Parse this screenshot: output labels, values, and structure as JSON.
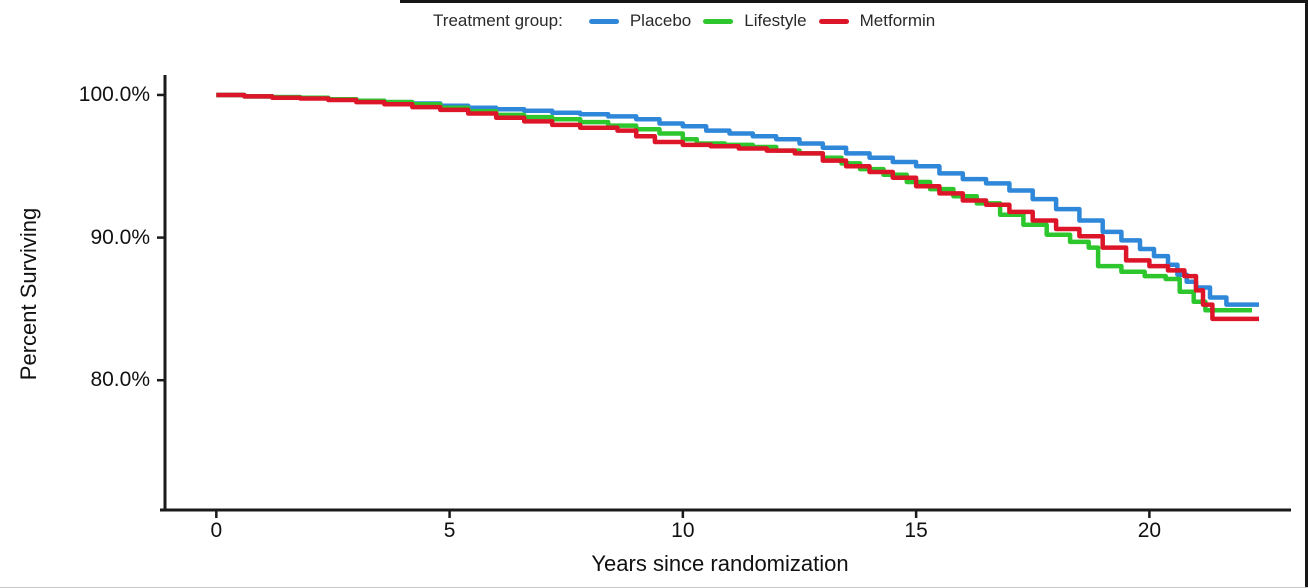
{
  "chart_data": {
    "type": "line",
    "subtype": "kaplan-meier-step",
    "title": "",
    "legend_title": "Treatment group:",
    "legend_position": "top-center",
    "grid": false,
    "xlabel": "Years since randomization",
    "ylabel": "Percent Surviving",
    "xlim": [
      -1.1,
      23.4
    ],
    "ylim": [
      70.9,
      101.4
    ],
    "x_ticks": [
      {
        "value": 0,
        "label": "0"
      },
      {
        "value": 5,
        "label": "5"
      },
      {
        "value": 10,
        "label": "10"
      },
      {
        "value": 15,
        "label": "15"
      },
      {
        "value": 20,
        "label": "20"
      }
    ],
    "y_ticks": [
      {
        "value": 100,
        "label": "100.0%"
      },
      {
        "value": 90,
        "label": "90.0%"
      },
      {
        "value": 80,
        "label": "80.0%"
      }
    ],
    "axis_color": "#1a1a1a",
    "series": [
      {
        "name": "Placebo",
        "color": "#2f87d9",
        "points": [
          [
            0,
            100
          ],
          [
            0.6,
            99.9
          ],
          [
            1.2,
            99.85
          ],
          [
            1.8,
            99.8
          ],
          [
            2.4,
            99.7
          ],
          [
            3,
            99.6
          ],
          [
            3.6,
            99.5
          ],
          [
            4.2,
            99.4
          ],
          [
            4.8,
            99.25
          ],
          [
            5.4,
            99.1
          ],
          [
            6,
            99.0
          ],
          [
            6.6,
            98.9
          ],
          [
            7.2,
            98.75
          ],
          [
            7.8,
            98.65
          ],
          [
            8.4,
            98.5
          ],
          [
            9,
            98.3
          ],
          [
            9.5,
            98.0
          ],
          [
            10,
            97.8
          ],
          [
            10.5,
            97.5
          ],
          [
            11,
            97.3
          ],
          [
            11.5,
            97.1
          ],
          [
            12,
            96.9
          ],
          [
            12.5,
            96.6
          ],
          [
            13,
            96.3
          ],
          [
            13.5,
            95.9
          ],
          [
            14,
            95.6
          ],
          [
            14.5,
            95.3
          ],
          [
            15,
            95.0
          ],
          [
            15.5,
            94.5
          ],
          [
            16,
            94.1
          ],
          [
            16.5,
            93.8
          ],
          [
            17,
            93.3
          ],
          [
            17.5,
            92.7
          ],
          [
            18,
            92.0
          ],
          [
            18.5,
            91.2
          ],
          [
            19,
            90.4
          ],
          [
            19.4,
            89.8
          ],
          [
            19.8,
            89.2
          ],
          [
            20.1,
            88.7
          ],
          [
            20.4,
            88.1
          ],
          [
            20.6,
            87.4
          ],
          [
            20.8,
            86.9
          ],
          [
            21.0,
            86.5
          ],
          [
            21.3,
            85.8
          ],
          [
            21.65,
            85.3
          ],
          [
            22.35,
            85.3
          ]
        ]
      },
      {
        "name": "Lifestyle",
        "color": "#2dc62d",
        "points": [
          [
            0,
            100
          ],
          [
            0.6,
            99.9
          ],
          [
            1.2,
            99.85
          ],
          [
            1.8,
            99.8
          ],
          [
            2.4,
            99.7
          ],
          [
            3,
            99.6
          ],
          [
            3.6,
            99.5
          ],
          [
            4.2,
            99.35
          ],
          [
            4.8,
            99.1
          ],
          [
            5.4,
            98.85
          ],
          [
            6,
            98.6
          ],
          [
            6.6,
            98.45
          ],
          [
            7.2,
            98.3
          ],
          [
            7.8,
            98.1
          ],
          [
            8.4,
            97.85
          ],
          [
            9,
            97.6
          ],
          [
            9.5,
            97.3
          ],
          [
            10,
            96.9
          ],
          [
            10.3,
            96.6
          ],
          [
            10.9,
            96.5
          ],
          [
            11.5,
            96.35
          ],
          [
            12,
            96.1
          ],
          [
            12.5,
            95.9
          ],
          [
            13,
            95.6
          ],
          [
            13.4,
            95.2
          ],
          [
            13.8,
            94.8
          ],
          [
            14.3,
            94.4
          ],
          [
            14.8,
            93.9
          ],
          [
            15.3,
            93.4
          ],
          [
            15.8,
            92.9
          ],
          [
            16.3,
            92.4
          ],
          [
            16.8,
            91.6
          ],
          [
            17.3,
            90.9
          ],
          [
            17.8,
            90.2
          ],
          [
            18.3,
            89.7
          ],
          [
            18.7,
            89.3
          ],
          [
            18.9,
            88.0
          ],
          [
            19.4,
            87.6
          ],
          [
            19.9,
            87.3
          ],
          [
            20.35,
            87.1
          ],
          [
            20.65,
            86.2
          ],
          [
            20.95,
            85.5
          ],
          [
            21.2,
            84.9
          ],
          [
            22.2,
            84.9
          ]
        ]
      },
      {
        "name": "Metformin",
        "color": "#dd1529",
        "points": [
          [
            0,
            100
          ],
          [
            0.6,
            99.9
          ],
          [
            1.2,
            99.8
          ],
          [
            1.8,
            99.75
          ],
          [
            2.4,
            99.65
          ],
          [
            3,
            99.5
          ],
          [
            3.6,
            99.35
          ],
          [
            4.2,
            99.15
          ],
          [
            4.8,
            98.95
          ],
          [
            5.4,
            98.7
          ],
          [
            6,
            98.4
          ],
          [
            6.6,
            98.15
          ],
          [
            7.2,
            97.9
          ],
          [
            7.8,
            97.7
          ],
          [
            8.6,
            97.5
          ],
          [
            9,
            97.1
          ],
          [
            9.4,
            96.7
          ],
          [
            10,
            96.5
          ],
          [
            10.6,
            96.4
          ],
          [
            11.2,
            96.25
          ],
          [
            11.8,
            96.1
          ],
          [
            12.4,
            95.9
          ],
          [
            13,
            95.4
          ],
          [
            13.5,
            95.0
          ],
          [
            14,
            94.6
          ],
          [
            14.5,
            94.2
          ],
          [
            15,
            93.6
          ],
          [
            15.5,
            93.1
          ],
          [
            16,
            92.6
          ],
          [
            16.5,
            92.3
          ],
          [
            17,
            91.8
          ],
          [
            17.5,
            91.2
          ],
          [
            18,
            90.6
          ],
          [
            18.5,
            90.1
          ],
          [
            19,
            89.3
          ],
          [
            19.5,
            88.4
          ],
          [
            20,
            88.0
          ],
          [
            20.4,
            87.7
          ],
          [
            20.75,
            87.3
          ],
          [
            21.0,
            86.3
          ],
          [
            21.15,
            85.3
          ],
          [
            21.35,
            84.3
          ],
          [
            22.35,
            84.3
          ]
        ]
      }
    ]
  }
}
